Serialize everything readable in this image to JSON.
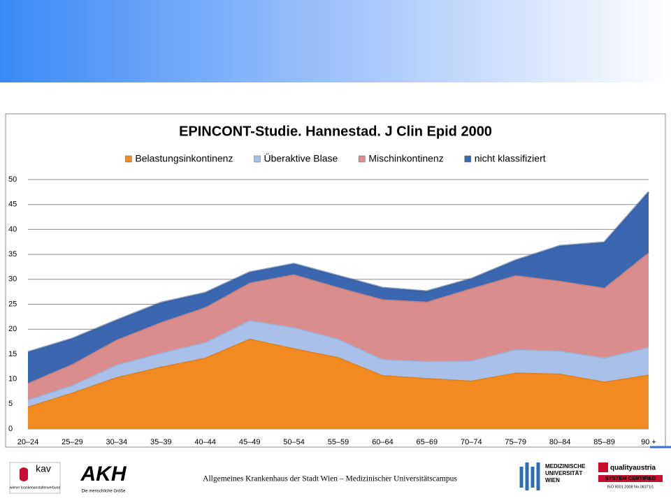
{
  "chart_data": {
    "type": "stacked_area",
    "title": "EPINCONT-Studie. Hannestad. J Clin Epid 2000",
    "categories": [
      "20–24",
      "25–29",
      "30–34",
      "35–39",
      "40–44",
      "45–49",
      "50–54",
      "55–59",
      "60–64",
      "65–69",
      "70–74",
      "75–79",
      "80–84",
      "85–89",
      "90 +"
    ],
    "series": [
      {
        "name": "Belastungsinkontinenz",
        "color": "#f28a22",
        "values": [
          4.5,
          7.3,
          10.4,
          12.5,
          14.3,
          18.1,
          16.2,
          14.4,
          10.8,
          10.2,
          9.7,
          11.3,
          11.1,
          9.5,
          10.9
        ]
      },
      {
        "name": "Überaktive Blase",
        "color": "#a9c1ea",
        "values": [
          1.4,
          1.5,
          2.5,
          2.8,
          3.1,
          3.7,
          4.2,
          3.7,
          3.2,
          3.4,
          4.0,
          4.7,
          4.6,
          4.8,
          5.5
        ]
      },
      {
        "name": "Mischinkontinenz",
        "color": "#da8d8c",
        "values": [
          3.3,
          4.2,
          5.0,
          6.1,
          7.0,
          7.5,
          10.6,
          10.3,
          12.0,
          11.9,
          14.5,
          14.8,
          14.0,
          14.0,
          19.0
        ]
      },
      {
        "name": "nicht klassifiziert",
        "color": "#3b67b0",
        "values": [
          6.2,
          5.1,
          3.9,
          3.9,
          2.9,
          2.1,
          2.1,
          2.3,
          2.3,
          2.1,
          1.9,
          3.0,
          7.0,
          9.1,
          12.1
        ]
      }
    ],
    "ylim": [
      0,
      50
    ],
    "yticks": [
      0,
      5,
      10,
      15,
      20,
      25,
      30,
      35,
      40,
      45,
      50
    ],
    "grid": true,
    "legend": "top"
  },
  "footer": "Allgemeines Krankenhaus der Stadt Wien – Medizinischer Universitätscampus",
  "logos": {
    "kav": "kav",
    "kav_sub": "wiener krankenanstaltenverbund",
    "akh": "AKH",
    "akh_sub": "Die menschliche Größe",
    "meduni": [
      "MEDIZINISCHE",
      "UNIVERSITÄT",
      "WIEN"
    ],
    "quality": "qualityaustria",
    "certified": "SYSTEM CERTIFIED",
    "iso": "ISO 9001:2008 No.08371/1"
  }
}
